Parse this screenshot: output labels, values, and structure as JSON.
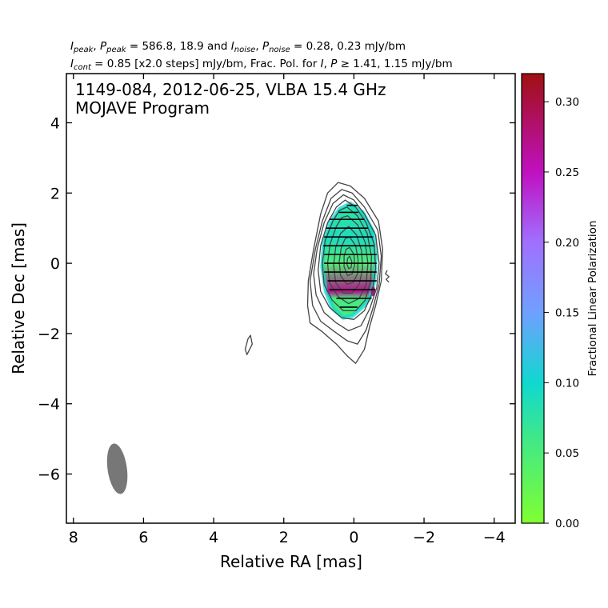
{
  "header": {
    "line1": [
      {
        "t": "I",
        "style": "italic"
      },
      {
        "t": "peak",
        "style": "sub"
      },
      {
        "t": ", ",
        "style": ""
      },
      {
        "t": "P",
        "style": "italic"
      },
      {
        "t": "peak",
        "style": "sub"
      },
      {
        "t": " = 586.8, 18.9 and ",
        "style": ""
      },
      {
        "t": "I",
        "style": "italic"
      },
      {
        "t": "noise",
        "style": "sub"
      },
      {
        "t": ", ",
        "style": ""
      },
      {
        "t": "P",
        "style": "italic"
      },
      {
        "t": "noise",
        "style": "sub"
      },
      {
        "t": " = 0.28, 0.23 mJy/bm",
        "style": ""
      }
    ],
    "line2": [
      {
        "t": "I",
        "style": "italic"
      },
      {
        "t": "cont",
        "style": "sub"
      },
      {
        "t": " = 0.85 [x2.0 steps] mJy/bm, Frac. Pol. for ",
        "style": ""
      },
      {
        "t": "I",
        "style": "italic"
      },
      {
        "t": ", ",
        "style": ""
      },
      {
        "t": "P",
        "style": "italic"
      },
      {
        "t": " ≥ 1.41, 1.15 mJy/bm",
        "style": ""
      }
    ]
  },
  "plot": {
    "title_line1": "1149-084, 2012-06-25, VLBA 15.4 GHz",
    "title_line2": "MOJAVE Program"
  },
  "colorbar": {
    "label": "Fractional Linear Polarization",
    "range": [
      0.0,
      0.32
    ],
    "ticks": [
      0.0,
      0.05,
      0.1,
      0.15,
      0.2,
      0.25,
      0.3
    ],
    "tick_labels": [
      "0.00",
      "0.05",
      "0.10",
      "0.15",
      "0.20",
      "0.25",
      "0.30"
    ],
    "colormap": [
      [
        0.0,
        "#80ff30"
      ],
      [
        0.06,
        "#40e888"
      ],
      [
        0.1,
        "#10d8d0"
      ],
      [
        0.15,
        "#70a0ff"
      ],
      [
        0.2,
        "#a070ff"
      ],
      [
        0.25,
        "#c010c0"
      ],
      [
        0.32,
        "#a01010"
      ]
    ]
  },
  "chart_data": {
    "type": "contour-map",
    "xlabel": "Relative RA [mas]",
    "ylabel": "Relative Dec [mas]",
    "xlim": [
      8.2,
      -4.6
    ],
    "ylim": [
      -7.4,
      5.4
    ],
    "x_ticks": [
      8,
      6,
      4,
      2,
      0,
      -2,
      -4
    ],
    "x_tick_labels": [
      "8",
      "6",
      "4",
      "2",
      "0",
      "−2",
      "−4"
    ],
    "y_ticks": [
      4,
      2,
      0,
      -2,
      -4,
      -6
    ],
    "y_tick_labels": [
      "4",
      "2",
      "0",
      "−2",
      "−4",
      "−6"
    ],
    "contour_color": "#444444",
    "contours": [
      [
        [
          0.45,
          2.3
        ],
        [
          0.1,
          2.2
        ],
        [
          -0.3,
          1.85
        ],
        [
          -0.7,
          1.2
        ],
        [
          -0.82,
          0.4
        ],
        [
          -0.78,
          -0.5
        ],
        [
          -0.62,
          -1.2
        ],
        [
          -0.45,
          -1.8
        ],
        [
          -0.3,
          -2.45
        ],
        [
          -0.05,
          -2.85
        ],
        [
          0.18,
          -2.65
        ],
        [
          0.5,
          -2.3
        ],
        [
          0.9,
          -1.95
        ],
        [
          1.25,
          -1.7
        ],
        [
          1.32,
          -1.2
        ],
        [
          1.3,
          -0.5
        ],
        [
          1.15,
          0.4
        ],
        [
          0.95,
          1.4
        ],
        [
          0.75,
          2.0
        ]
      ],
      [
        [
          0.35,
          2.1
        ],
        [
          0.05,
          2.0
        ],
        [
          -0.3,
          1.6
        ],
        [
          -0.68,
          0.95
        ],
        [
          -0.78,
          0.2
        ],
        [
          -0.72,
          -0.6
        ],
        [
          -0.55,
          -1.25
        ],
        [
          -0.35,
          -1.9
        ],
        [
          -0.1,
          -2.3
        ],
        [
          0.2,
          -2.2
        ],
        [
          0.55,
          -1.95
        ],
        [
          0.95,
          -1.65
        ],
        [
          1.18,
          -1.2
        ],
        [
          1.25,
          -0.5
        ],
        [
          1.1,
          0.4
        ],
        [
          0.9,
          1.2
        ],
        [
          0.65,
          1.85
        ]
      ],
      [
        [
          0.3,
          1.95
        ],
        [
          0.0,
          1.8
        ],
        [
          -0.3,
          1.4
        ],
        [
          -0.62,
          0.8
        ],
        [
          -0.72,
          0.0
        ],
        [
          -0.65,
          -0.7
        ],
        [
          -0.45,
          -1.3
        ],
        [
          -0.2,
          -1.78
        ],
        [
          0.15,
          -1.92
        ],
        [
          0.5,
          -1.7
        ],
        [
          0.85,
          -1.4
        ],
        [
          1.08,
          -0.9
        ],
        [
          1.15,
          -0.3
        ],
        [
          1.05,
          0.4
        ],
        [
          0.85,
          1.15
        ],
        [
          0.6,
          1.7
        ]
      ],
      [
        [
          0.25,
          1.8
        ],
        [
          -0.05,
          1.6
        ],
        [
          -0.35,
          1.15
        ],
        [
          -0.58,
          0.55
        ],
        [
          -0.62,
          -0.15
        ],
        [
          -0.52,
          -0.85
        ],
        [
          -0.3,
          -1.35
        ],
        [
          0.0,
          -1.6
        ],
        [
          0.35,
          -1.55
        ],
        [
          0.7,
          -1.25
        ],
        [
          0.95,
          -0.8
        ],
        [
          1.02,
          -0.2
        ],
        [
          0.95,
          0.5
        ],
        [
          0.75,
          1.15
        ],
        [
          0.5,
          1.6
        ]
      ],
      [
        [
          0.2,
          1.6
        ],
        [
          -0.1,
          1.35
        ],
        [
          -0.38,
          0.85
        ],
        [
          -0.5,
          0.2
        ],
        [
          -0.48,
          -0.5
        ],
        [
          -0.32,
          -1.05
        ],
        [
          -0.05,
          -1.35
        ],
        [
          0.3,
          -1.35
        ],
        [
          0.62,
          -1.05
        ],
        [
          0.85,
          -0.6
        ],
        [
          0.9,
          0.0
        ],
        [
          0.82,
          0.65
        ],
        [
          0.6,
          1.2
        ],
        [
          0.42,
          1.5
        ]
      ],
      [
        [
          0.18,
          1.35
        ],
        [
          -0.1,
          1.1
        ],
        [
          -0.32,
          0.6
        ],
        [
          -0.4,
          0.0
        ],
        [
          -0.35,
          -0.6
        ],
        [
          -0.15,
          -1.0
        ],
        [
          0.15,
          -1.15
        ],
        [
          0.45,
          -0.95
        ],
        [
          0.7,
          -0.55
        ],
        [
          0.75,
          0.0
        ],
        [
          0.68,
          0.55
        ],
        [
          0.5,
          1.05
        ],
        [
          0.35,
          1.3
        ]
      ],
      [
        [
          0.15,
          1.05
        ],
        [
          -0.08,
          0.8
        ],
        [
          -0.22,
          0.35
        ],
        [
          -0.25,
          -0.15
        ],
        [
          -0.15,
          -0.6
        ],
        [
          0.05,
          -0.85
        ],
        [
          0.3,
          -0.85
        ],
        [
          0.52,
          -0.55
        ],
        [
          0.58,
          -0.05
        ],
        [
          0.52,
          0.45
        ],
        [
          0.38,
          0.85
        ]
      ],
      [
        [
          0.12,
          0.75
        ],
        [
          -0.05,
          0.5
        ],
        [
          -0.12,
          0.1
        ],
        [
          -0.1,
          -0.3
        ],
        [
          0.02,
          -0.55
        ],
        [
          0.2,
          -0.6
        ],
        [
          0.38,
          -0.35
        ],
        [
          0.42,
          0.05
        ],
        [
          0.36,
          0.45
        ],
        [
          0.25,
          0.7
        ]
      ],
      [
        [
          0.12,
          0.45
        ],
        [
          0.0,
          0.25
        ],
        [
          -0.02,
          -0.05
        ],
        [
          0.05,
          -0.3
        ],
        [
          0.18,
          -0.35
        ],
        [
          0.28,
          -0.1
        ],
        [
          0.28,
          0.2
        ],
        [
          0.22,
          0.4
        ]
      ],
      [
        [
          0.12,
          0.2
        ],
        [
          0.06,
          0.05
        ],
        [
          0.08,
          -0.12
        ],
        [
          0.15,
          -0.15
        ],
        [
          0.2,
          -0.02
        ],
        [
          0.18,
          0.14
        ]
      ],
      [
        [
          2.95,
          -2.05
        ],
        [
          2.9,
          -2.3
        ],
        [
          3.05,
          -2.6
        ],
        [
          3.1,
          -2.45
        ],
        [
          3.02,
          -2.15
        ]
      ],
      [
        [
          -0.95,
          -0.2
        ],
        [
          -0.9,
          -0.3
        ],
        [
          -1.0,
          -0.38
        ],
        [
          -0.92,
          -0.46
        ],
        [
          -1.0,
          -0.54
        ]
      ]
    ],
    "polarization_region": [
      [
        0.1,
        1.7
      ],
      [
        -0.25,
        1.45
      ],
      [
        -0.55,
        0.9
      ],
      [
        -0.62,
        0.2
      ],
      [
        -0.58,
        -0.5
      ],
      [
        -0.45,
        -1.0
      ],
      [
        -0.3,
        -1.2
      ],
      [
        0.05,
        -1.5
      ],
      [
        0.3,
        -1.55
      ],
      [
        0.6,
        -1.3
      ],
      [
        0.8,
        -0.8
      ],
      [
        0.9,
        -0.1
      ],
      [
        0.85,
        0.7
      ],
      [
        0.65,
        1.2
      ],
      [
        0.4,
        1.55
      ]
    ],
    "polarization_gradient": [
      {
        "x": 0.0,
        "y": 1.3,
        "fp": 0.08
      },
      {
        "x": 0.6,
        "y": 0.7,
        "fp": 0.09
      },
      {
        "x": 0.05,
        "y": 0.0,
        "fp": 0.045
      },
      {
        "x": 0.15,
        "y": -1.0,
        "fp": 0.055
      },
      {
        "x": -0.55,
        "y": -0.8,
        "fp": 0.27
      }
    ],
    "evpa_ticks": [
      {
        "x": 0.05,
        "y": 1.65,
        "len": 0.3
      },
      {
        "x": 0.15,
        "y": 1.45,
        "len": 0.55
      },
      {
        "x": 0.2,
        "y": 1.25,
        "len": 1.0
      },
      {
        "x": 0.2,
        "y": 1.0,
        "len": 1.2
      },
      {
        "x": 0.15,
        "y": 0.75,
        "len": 1.4
      },
      {
        "x": 0.15,
        "y": 0.5,
        "len": 1.45
      },
      {
        "x": 0.1,
        "y": 0.25,
        "len": 1.5
      },
      {
        "x": 0.1,
        "y": 0.0,
        "len": 1.5
      },
      {
        "x": 0.1,
        "y": -0.25,
        "len": 1.5
      },
      {
        "x": 0.05,
        "y": -0.5,
        "len": 1.4
      },
      {
        "x": 0.05,
        "y": -0.75,
        "len": 1.3
      },
      {
        "x": 0.0,
        "y": -1.0,
        "len": 1.0
      },
      {
        "x": 0.15,
        "y": -1.25,
        "len": 0.5
      }
    ],
    "beam": {
      "x": 6.75,
      "y": -5.85,
      "major": 1.45,
      "minor": 0.55,
      "pa_deg": -8,
      "color": "#777777"
    }
  }
}
